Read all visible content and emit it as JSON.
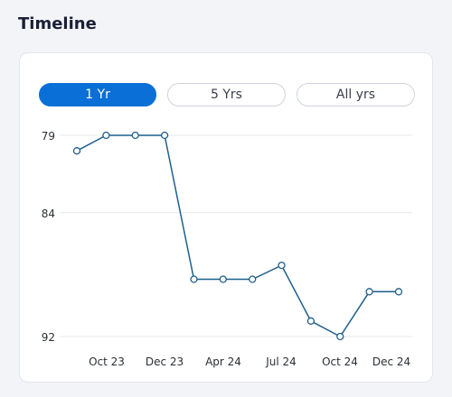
{
  "header": {
    "title": "Timeline"
  },
  "range_tabs": [
    {
      "label": "1 Yr",
      "active": true
    },
    {
      "label": "5 Yrs",
      "active": false
    },
    {
      "label": "All yrs",
      "active": false
    }
  ],
  "colors": {
    "accent": "#0a6fd6",
    "line": "#1f5f8b",
    "grid": "#e6e8eb"
  },
  "chart_data": {
    "type": "line",
    "y_inverted": true,
    "ylim": [
      79,
      92
    ],
    "y_ticks": [
      "79",
      "84",
      "92"
    ],
    "x_tick_labels": [
      "Oct 23",
      "Dec 23",
      "Apr 24",
      "Jul 24",
      "Oct 24",
      "Dec 24"
    ],
    "grid": true,
    "series": [
      {
        "values": [
          80,
          79,
          79,
          79,
          88.3,
          88.3,
          88.3,
          87.4,
          91,
          92,
          89.1,
          89.1
        ]
      }
    ]
  }
}
